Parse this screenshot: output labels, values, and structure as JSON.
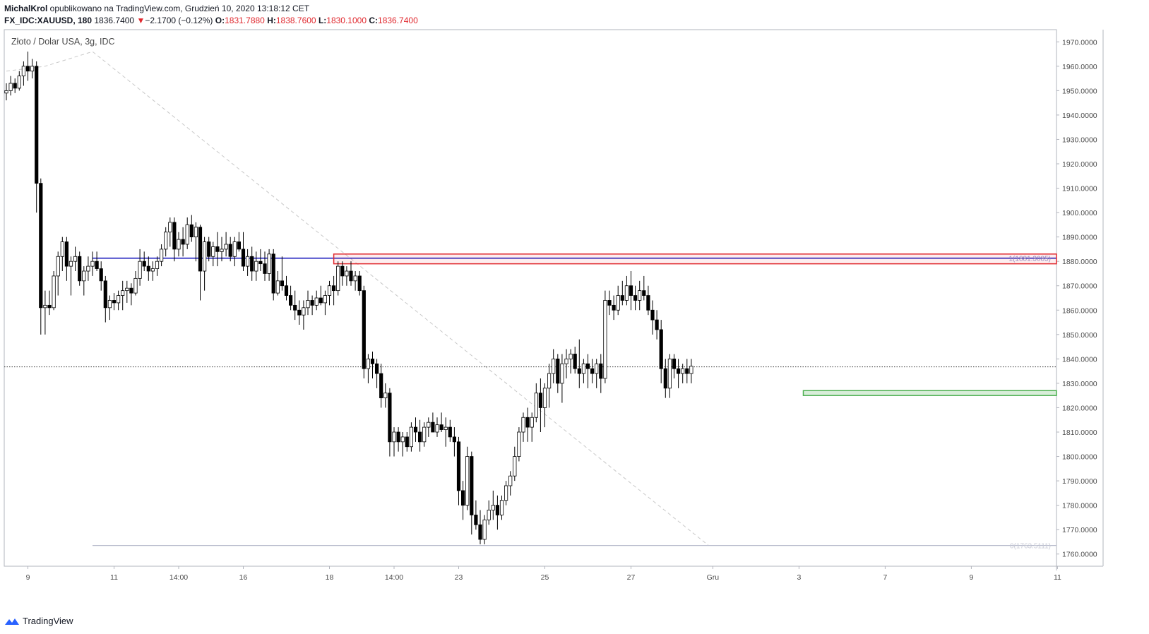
{
  "header": {
    "author": "MichalKrol",
    "published_text": " opublikowano na TradingView.com, Grudzień 10, 2020 13:18:12 CET",
    "symbol": "FX_IDC:XAUUSD, 180",
    "last": "1836.7400",
    "change": "−2.1700 (−0.12%)",
    "o_label": "O:",
    "o_value": "1831.7880",
    "h_label": "H:",
    "h_value": "1838.7600",
    "l_label": "L:",
    "l_value": "1830.1000",
    "c_label": "C:",
    "c_value": "1836.7400"
  },
  "footer": {
    "brand": "TradingView",
    "icon": "tradingview-logo-icon"
  },
  "colors": {
    "up": "#ffffff",
    "down": "#000000",
    "red_zone": "#e0282e",
    "green_zone": "#4caf50",
    "blue_level": "#1f1fbf",
    "fib_text": "#9090c8"
  },
  "chart_data": {
    "type": "candlestick",
    "title": "Złoto / Dolar USA, 3g, IDC",
    "ylim": [
      1755,
      1975
    ],
    "y_ticks": [
      "1760.0000",
      "1770.0000",
      "1780.0000",
      "1790.0000",
      "1800.0000",
      "1810.0000",
      "1820.0000",
      "1830.0000",
      "1840.0000",
      "1850.0000",
      "1860.0000",
      "1870.0000",
      "1880.0000",
      "1890.0000",
      "1900.0000",
      "1910.0000",
      "1920.0000",
      "1930.0000",
      "1940.0000",
      "1950.0000",
      "1960.0000",
      "1970.0000"
    ],
    "x_ticks": [
      {
        "label": "9",
        "bar": 5
      },
      {
        "label": "11",
        "bar": 25
      },
      {
        "label": "14:00",
        "bar": 40
      },
      {
        "label": "16",
        "bar": 55
      },
      {
        "label": "18",
        "bar": 75
      },
      {
        "label": "14:00",
        "bar": 90
      },
      {
        "label": "23",
        "bar": 105
      },
      {
        "label": "25",
        "bar": 125
      },
      {
        "label": "27",
        "bar": 145
      },
      {
        "label": "Gru",
        "bar": 164
      },
      {
        "label": "3",
        "bar": 184
      },
      {
        "label": "7",
        "bar": 204
      },
      {
        "label": "9",
        "bar": 224
      },
      {
        "label": "11",
        "bar": 244
      }
    ],
    "last_price": 1836.74,
    "fib_levels": [
      {
        "label": "1(1881.3085)",
        "value": 1881.3085
      },
      {
        "label": "0(1763.5111)",
        "value": 1763.5111
      }
    ],
    "zones": [
      {
        "name": "resistance",
        "top": 1883,
        "bottom": 1879,
        "start_bar": 76
      },
      {
        "name": "support",
        "top": 1827,
        "bottom": 1825,
        "start_bar": 185
      }
    ],
    "candles": [
      [
        1949,
        1953,
        1946,
        1950
      ],
      [
        1950,
        1956,
        1948,
        1953
      ],
      [
        1953,
        1955,
        1949,
        1951
      ],
      [
        1951,
        1958,
        1950,
        1956
      ],
      [
        1956,
        1962,
        1952,
        1960
      ],
      [
        1960,
        1966,
        1954,
        1958
      ],
      [
        1958,
        1963,
        1955,
        1960
      ],
      [
        1960,
        1962,
        1900,
        1912
      ],
      [
        1912,
        1914,
        1850,
        1861
      ],
      [
        1861,
        1868,
        1850,
        1862
      ],
      [
        1862,
        1868,
        1858,
        1861
      ],
      [
        1861,
        1876,
        1860,
        1874
      ],
      [
        1874,
        1884,
        1866,
        1882
      ],
      [
        1882,
        1890,
        1876,
        1888
      ],
      [
        1888,
        1890,
        1872,
        1878
      ],
      [
        1878,
        1882,
        1866,
        1880
      ],
      [
        1880,
        1886,
        1876,
        1882
      ],
      [
        1882,
        1884,
        1870,
        1872
      ],
      [
        1872,
        1878,
        1866,
        1876
      ],
      [
        1876,
        1882,
        1872,
        1878
      ],
      [
        1878,
        1884,
        1874,
        1880
      ],
      [
        1880,
        1884,
        1876,
        1877
      ],
      [
        1877,
        1880,
        1868,
        1872
      ],
      [
        1872,
        1874,
        1855,
        1861
      ],
      [
        1861,
        1866,
        1856,
        1864
      ],
      [
        1864,
        1867,
        1860,
        1863
      ],
      [
        1863,
        1868,
        1860,
        1866
      ],
      [
        1866,
        1872,
        1860,
        1868
      ],
      [
        1868,
        1872,
        1863,
        1869
      ],
      [
        1869,
        1871,
        1862,
        1867
      ],
      [
        1867,
        1876,
        1866,
        1873
      ],
      [
        1873,
        1885,
        1870,
        1880
      ],
      [
        1880,
        1884,
        1876,
        1878
      ],
      [
        1878,
        1882,
        1872,
        1876
      ],
      [
        1876,
        1880,
        1872,
        1877
      ],
      [
        1877,
        1882,
        1874,
        1880
      ],
      [
        1880,
        1887,
        1878,
        1885
      ],
      [
        1885,
        1894,
        1882,
        1892
      ],
      [
        1892,
        1898,
        1886,
        1896
      ],
      [
        1896,
        1898,
        1880,
        1885
      ],
      [
        1885,
        1892,
        1882,
        1889
      ],
      [
        1889,
        1894,
        1882,
        1887
      ],
      [
        1887,
        1898,
        1885,
        1895
      ],
      [
        1895,
        1899,
        1888,
        1890
      ],
      [
        1890,
        1896,
        1880,
        1894
      ],
      [
        1894,
        1895,
        1864,
        1876
      ],
      [
        1876,
        1890,
        1868,
        1888
      ],
      [
        1888,
        1890,
        1880,
        1882
      ],
      [
        1882,
        1888,
        1878,
        1886
      ],
      [
        1886,
        1892,
        1878,
        1884
      ],
      [
        1884,
        1890,
        1880,
        1885
      ],
      [
        1885,
        1892,
        1882,
        1887
      ],
      [
        1887,
        1890,
        1880,
        1882
      ],
      [
        1882,
        1890,
        1878,
        1888
      ],
      [
        1888,
        1892,
        1884,
        1885
      ],
      [
        1885,
        1892,
        1876,
        1878
      ],
      [
        1878,
        1885,
        1874,
        1882
      ],
      [
        1882,
        1886,
        1872,
        1876
      ],
      [
        1876,
        1884,
        1872,
        1880
      ],
      [
        1880,
        1885,
        1876,
        1879
      ],
      [
        1879,
        1884,
        1872,
        1875
      ],
      [
        1875,
        1885,
        1872,
        1883
      ],
      [
        1883,
        1885,
        1864,
        1867
      ],
      [
        1867,
        1876,
        1866,
        1872
      ],
      [
        1872,
        1882,
        1868,
        1870
      ],
      [
        1870,
        1874,
        1864,
        1866
      ],
      [
        1866,
        1870,
        1860,
        1862
      ],
      [
        1862,
        1868,
        1856,
        1860
      ],
      [
        1860,
        1864,
        1854,
        1858
      ],
      [
        1858,
        1864,
        1852,
        1861
      ],
      [
        1861,
        1868,
        1858,
        1864
      ],
      [
        1864,
        1866,
        1858,
        1862
      ],
      [
        1862,
        1868,
        1860,
        1865
      ],
      [
        1865,
        1870,
        1862,
        1863
      ],
      [
        1863,
        1868,
        1858,
        1866
      ],
      [
        1866,
        1872,
        1862,
        1870
      ],
      [
        1870,
        1874,
        1862,
        1868
      ],
      [
        1868,
        1880,
        1866,
        1878
      ],
      [
        1878,
        1880,
        1870,
        1874
      ],
      [
        1874,
        1878,
        1870,
        1876
      ],
      [
        1876,
        1880,
        1870,
        1872
      ],
      [
        1872,
        1876,
        1868,
        1874
      ],
      [
        1874,
        1876,
        1866,
        1868
      ],
      [
        1868,
        1870,
        1832,
        1836
      ],
      [
        1836,
        1842,
        1830,
        1840
      ],
      [
        1840,
        1843,
        1832,
        1838
      ],
      [
        1838,
        1840,
        1828,
        1834
      ],
      [
        1834,
        1838,
        1820,
        1824
      ],
      [
        1824,
        1830,
        1820,
        1826
      ],
      [
        1826,
        1828,
        1800,
        1806
      ],
      [
        1806,
        1812,
        1800,
        1810
      ],
      [
        1810,
        1812,
        1802,
        1806
      ],
      [
        1806,
        1810,
        1800,
        1808
      ],
      [
        1808,
        1810,
        1802,
        1804
      ],
      [
        1804,
        1814,
        1802,
        1812
      ],
      [
        1812,
        1816,
        1806,
        1810
      ],
      [
        1810,
        1815,
        1802,
        1806
      ],
      [
        1806,
        1814,
        1804,
        1812
      ],
      [
        1812,
        1816,
        1808,
        1814
      ],
      [
        1814,
        1818,
        1810,
        1810
      ],
      [
        1810,
        1816,
        1808,
        1813
      ],
      [
        1813,
        1818,
        1810,
        1811
      ],
      [
        1811,
        1816,
        1804,
        1812
      ],
      [
        1812,
        1815,
        1806,
        1808
      ],
      [
        1808,
        1812,
        1800,
        1806
      ],
      [
        1806,
        1808,
        1780,
        1786
      ],
      [
        1786,
        1790,
        1774,
        1780
      ],
      [
        1780,
        1804,
        1778,
        1800
      ],
      [
        1800,
        1802,
        1768,
        1776
      ],
      [
        1776,
        1782,
        1770,
        1772
      ],
      [
        1772,
        1778,
        1764,
        1766
      ],
      [
        1766,
        1776,
        1764,
        1774
      ],
      [
        1774,
        1782,
        1772,
        1778
      ],
      [
        1778,
        1786,
        1774,
        1780
      ],
      [
        1780,
        1784,
        1770,
        1776
      ],
      [
        1776,
        1784,
        1774,
        1782
      ],
      [
        1782,
        1790,
        1780,
        1788
      ],
      [
        1788,
        1794,
        1784,
        1792
      ],
      [
        1792,
        1804,
        1790,
        1800
      ],
      [
        1800,
        1812,
        1798,
        1810
      ],
      [
        1810,
        1818,
        1806,
        1816
      ],
      [
        1816,
        1820,
        1806,
        1812
      ],
      [
        1812,
        1818,
        1806,
        1816
      ],
      [
        1816,
        1830,
        1814,
        1826
      ],
      [
        1826,
        1832,
        1810,
        1820
      ],
      [
        1820,
        1830,
        1812,
        1828
      ],
      [
        1828,
        1838,
        1820,
        1834
      ],
      [
        1834,
        1844,
        1830,
        1840
      ],
      [
        1840,
        1842,
        1826,
        1830
      ],
      [
        1830,
        1842,
        1822,
        1838
      ],
      [
        1838,
        1844,
        1832,
        1840
      ],
      [
        1840,
        1844,
        1834,
        1842
      ],
      [
        1842,
        1845,
        1834,
        1836
      ],
      [
        1836,
        1848,
        1828,
        1834
      ],
      [
        1834,
        1840,
        1830,
        1838
      ],
      [
        1838,
        1842,
        1828,
        1836
      ],
      [
        1836,
        1840,
        1830,
        1834
      ],
      [
        1834,
        1840,
        1828,
        1838
      ],
      [
        1838,
        1842,
        1826,
        1832
      ],
      [
        1832,
        1868,
        1830,
        1864
      ],
      [
        1864,
        1868,
        1858,
        1862
      ],
      [
        1862,
        1866,
        1856,
        1860
      ],
      [
        1860,
        1870,
        1858,
        1866
      ],
      [
        1866,
        1872,
        1862,
        1864
      ],
      [
        1864,
        1874,
        1862,
        1870
      ],
      [
        1870,
        1876,
        1860,
        1866
      ],
      [
        1866,
        1870,
        1860,
        1864
      ],
      [
        1864,
        1872,
        1860,
        1868
      ],
      [
        1868,
        1874,
        1864,
        1866
      ],
      [
        1866,
        1870,
        1858,
        1860
      ],
      [
        1860,
        1864,
        1850,
        1856
      ],
      [
        1856,
        1860,
        1848,
        1852
      ],
      [
        1852,
        1856,
        1830,
        1836
      ],
      [
        1836,
        1840,
        1824,
        1828
      ],
      [
        1828,
        1842,
        1824,
        1840
      ],
      [
        1840,
        1842,
        1832,
        1836
      ],
      [
        1836,
        1840,
        1828,
        1834
      ],
      [
        1834,
        1838,
        1830,
        1836
      ],
      [
        1836,
        1840,
        1830,
        1834
      ],
      [
        1834,
        1840,
        1830,
        1837
      ]
    ]
  }
}
